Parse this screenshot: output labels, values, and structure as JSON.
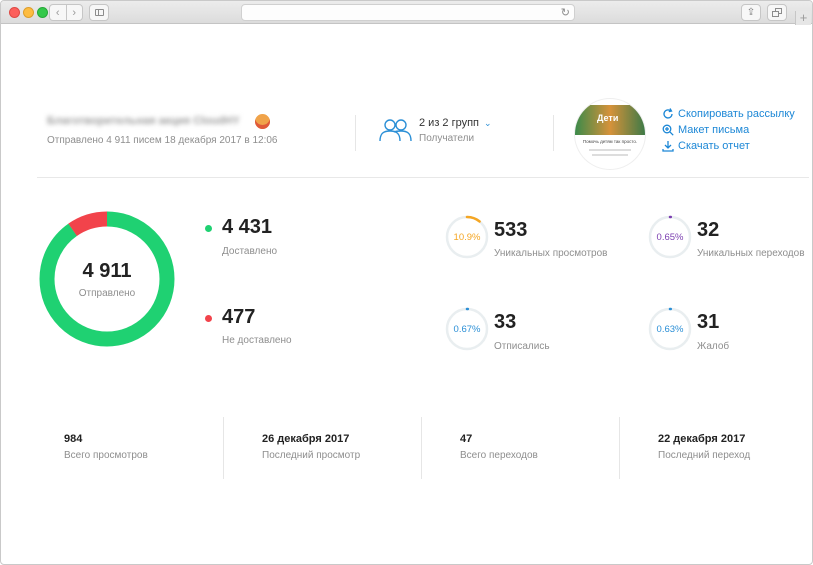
{
  "campaign": {
    "title": "Благотворительная акция CloudHY",
    "subtitle": "Отправлено 4 911 писем 18 декабря 2017 в 12:06",
    "emoji_icon": "santa-emoji-icon"
  },
  "recipients": {
    "count_label": "2 из 2 групп",
    "label": "Получатели",
    "icon": "people-icon"
  },
  "thumbnail": {
    "brand": "Дети",
    "caption": "Помочь детям так просто."
  },
  "actions": {
    "copy": "Скопировать рассылку",
    "layout": "Макет письма",
    "download": "Скачать отчет"
  },
  "summary": {
    "sent_value": "4 911",
    "sent_label": "Отправлено",
    "sent_total": 4911,
    "delivered_value": "4 431",
    "delivered_label": "Доставлено",
    "delivered_count": 4431,
    "not_delivered_value": "477",
    "not_delivered_label": "Не доставлено",
    "not_delivered_count": 477
  },
  "metrics": [
    {
      "pct": "10.9%",
      "fraction": 0.109,
      "value": "533",
      "label": "Уникальных просмотров",
      "color": "#f5a623"
    },
    {
      "pct": "0.65%",
      "fraction": 0.0065,
      "value": "32",
      "label": "Уникальных переходов",
      "color": "#7b3fb0"
    },
    {
      "pct": "0.67%",
      "fraction": 0.0067,
      "value": "33",
      "label": "Отписались",
      "color": "#2b8fd6"
    },
    {
      "pct": "0.63%",
      "fraction": 0.0063,
      "value": "31",
      "label": "Жалоб",
      "color": "#2b8fd6"
    }
  ],
  "stats": [
    {
      "value": "984",
      "label": "Всего просмотров"
    },
    {
      "value": "26 декабря 2017",
      "label": "Последний просмотр"
    },
    {
      "value": "47",
      "label": "Всего переходов"
    },
    {
      "value": "22 декабря 2017",
      "label": "Последний переход"
    }
  ],
  "colors": {
    "delivered": "#1fd172",
    "not_delivered": "#f2434b",
    "accent": "#1c87d6",
    "gauge_track": "#e9eef0"
  }
}
